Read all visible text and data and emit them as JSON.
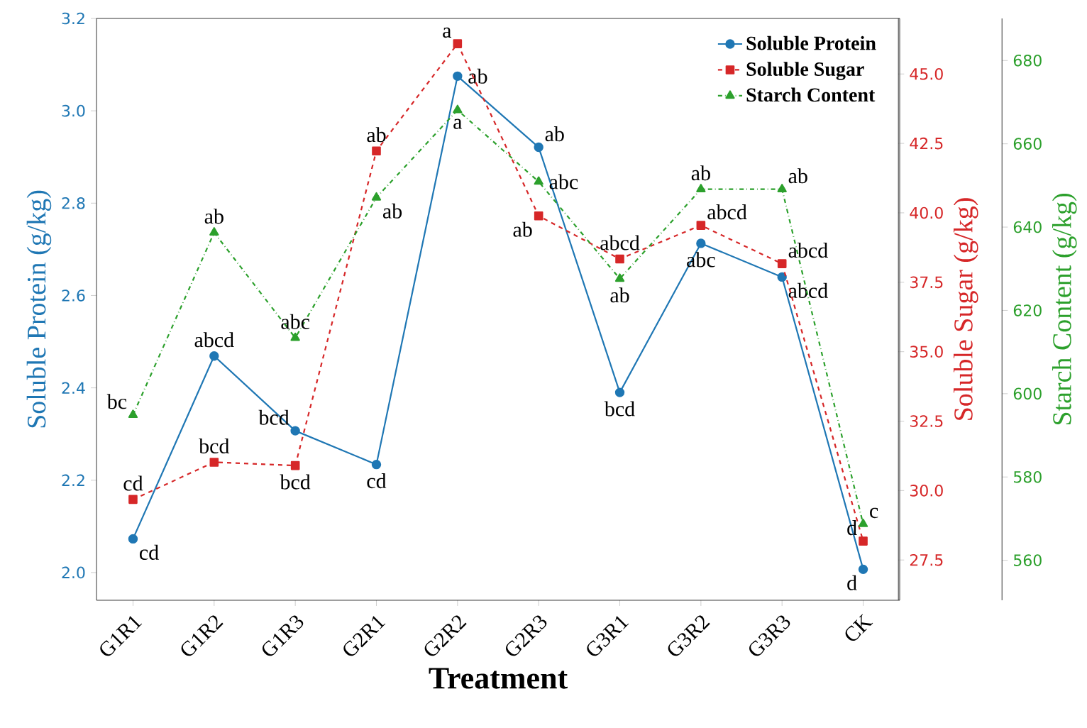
{
  "chart_data": {
    "type": "line",
    "xlabel": "Treatment",
    "ylabel": "Soluble Protein (g/kg)",
    "y2label": "Soluble Sugar (g/kg)",
    "y3label": "Starch Content (g/kg)",
    "categories": [
      "G1R1",
      "G1R2",
      "G1R3",
      "G2R1",
      "G2R2",
      "G2R3",
      "G3R1",
      "G3R2",
      "G3R3",
      "CK"
    ],
    "ylim": [
      1.94,
      3.2
    ],
    "yticks": [
      {
        "value": 2.0,
        "label": "2.0"
      },
      2.2,
      2.4,
      2.6,
      2.8,
      {
        "value": 3.0,
        "label": "3.0"
      },
      3.2
    ],
    "y2lim": [
      26.05,
      47.0
    ],
    "y2ticks": [
      27.5,
      {
        "value": 30.0,
        "label": "30.0"
      },
      32.5,
      {
        "value": 35.0,
        "label": "35.0"
      },
      37.5,
      {
        "value": 40.0,
        "label": "40.0"
      },
      42.5,
      {
        "value": 45.0,
        "label": "45.0"
      }
    ],
    "y3lim": [
      550.4,
      690.1
    ],
    "y3ticks": [
      560,
      580,
      600,
      620,
      640,
      660,
      680
    ],
    "legend": "top right",
    "grid": false,
    "series": [
      {
        "name": "Soluble Protein",
        "color": "#1f77b4",
        "axis": "y",
        "marker": "circle",
        "line_style": "solid",
        "values": [
          2.073,
          2.469,
          2.307,
          2.234,
          3.075,
          2.921,
          2.39,
          2.713,
          2.64,
          2.007
        ],
        "value_labels": [
          "cd",
          "abcd",
          "bcd",
          "cd",
          "ab",
          "ab",
          "bcd",
          "abc",
          "abcd",
          "d"
        ]
      },
      {
        "name": "Soluble Sugar",
        "color": "#d62728",
        "axis": "y2",
        "marker": "square",
        "line_style": "dashed",
        "values": [
          29.68,
          31.02,
          30.9,
          42.23,
          46.09,
          39.89,
          38.34,
          39.55,
          38.17,
          28.18
        ],
        "value_labels": [
          "cd",
          "bcd",
          "bcd",
          "ab",
          "a",
          "ab",
          "abcd",
          "abcd",
          "abcd",
          "d"
        ]
      },
      {
        "name": "Starch Content",
        "color": "#2ca02c",
        "axis": "y3",
        "marker": "triangle",
        "line_style": "dashdot",
        "values": [
          594.9,
          638.7,
          613.4,
          647.1,
          668.1,
          650.9,
          627.6,
          649.1,
          649.1,
          568.7
        ],
        "value_labels": [
          "bc",
          "ab",
          "abc",
          "ab",
          "a",
          "abc",
          "ab",
          "ab",
          "ab",
          "c"
        ]
      }
    ]
  }
}
